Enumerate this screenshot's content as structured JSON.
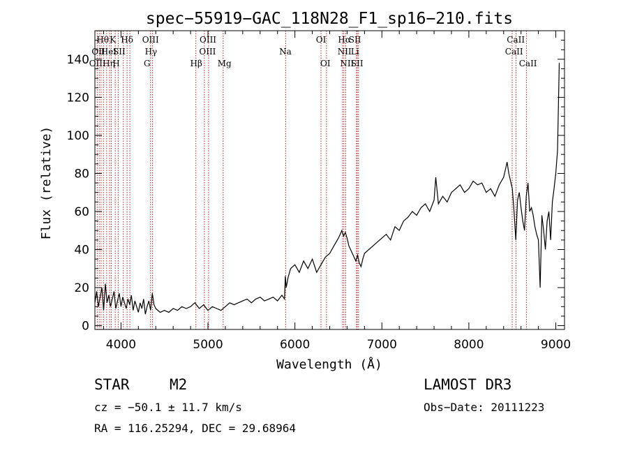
{
  "chart_data": {
    "type": "line",
    "title": "spec−55919−GAC_118N28_F1_sp16−210.fits",
    "xlabel": "Wavelength (Å)",
    "ylabel": "Flux (relative)",
    "xlim": [
      3700,
      9100
    ],
    "ylim": [
      -2,
      155
    ],
    "xticks": [
      4000,
      5000,
      6000,
      7000,
      8000,
      9000
    ],
    "yticks": [
      0,
      20,
      40,
      60,
      80,
      100,
      120,
      140
    ],
    "grid": false,
    "series": [
      {
        "name": "spectrum",
        "x": [
          3700,
          3720,
          3740,
          3760,
          3780,
          3800,
          3820,
          3840,
          3860,
          3880,
          3900,
          3920,
          3940,
          3960,
          3980,
          4000,
          4020,
          4040,
          4060,
          4080,
          4100,
          4120,
          4140,
          4160,
          4180,
          4200,
          4220,
          4240,
          4260,
          4280,
          4300,
          4320,
          4340,
          4360,
          4380,
          4400,
          4450,
          4500,
          4550,
          4600,
          4650,
          4700,
          4750,
          4800,
          4850,
          4900,
          4950,
          5000,
          5050,
          5100,
          5150,
          5200,
          5250,
          5300,
          5350,
          5400,
          5450,
          5500,
          5550,
          5600,
          5650,
          5700,
          5750,
          5800,
          5850,
          5880,
          5890,
          5900,
          5920,
          5950,
          6000,
          6050,
          6100,
          6150,
          6200,
          6250,
          6300,
          6350,
          6400,
          6450,
          6500,
          6520,
          6540,
          6560,
          6580,
          6600,
          6620,
          6640,
          6660,
          6680,
          6700,
          6720,
          6740,
          6760,
          6780,
          6800,
          6850,
          6900,
          6950,
          7000,
          7050,
          7100,
          7150,
          7200,
          7250,
          7300,
          7350,
          7400,
          7450,
          7500,
          7550,
          7600,
          7620,
          7650,
          7700,
          7750,
          7800,
          7850,
          7900,
          7950,
          8000,
          8050,
          8100,
          8150,
          8200,
          8250,
          8300,
          8350,
          8400,
          8420,
          8440,
          8460,
          8480,
          8500,
          8520,
          8540,
          8560,
          8580,
          8600,
          8620,
          8640,
          8660,
          8680,
          8700,
          8720,
          8740,
          8760,
          8780,
          8800,
          8820,
          8840,
          8860,
          8880,
          8900,
          8920,
          8940,
          8960,
          8980,
          9000,
          9020,
          9040
        ],
        "values": [
          12,
          18,
          10,
          15,
          20,
          8,
          22,
          12,
          16,
          10,
          14,
          18,
          9,
          13,
          17,
          10,
          15,
          12,
          9,
          14,
          11,
          16,
          8,
          13,
          10,
          7,
          12,
          9,
          14,
          6,
          10,
          13,
          8,
          17,
          11,
          9,
          7,
          8,
          7,
          9,
          8,
          10,
          9,
          10,
          12,
          9,
          11,
          8,
          10,
          9,
          8,
          10,
          12,
          11,
          12,
          13,
          14,
          12,
          14,
          15,
          13,
          14,
          15,
          13,
          16,
          14,
          26,
          20,
          25,
          30,
          32,
          28,
          34,
          30,
          35,
          28,
          32,
          36,
          38,
          42,
          46,
          48,
          50,
          47,
          49,
          46,
          42,
          40,
          38,
          36,
          34,
          37,
          33,
          31,
          35,
          38,
          40,
          42,
          44,
          46,
          48,
          45,
          52,
          50,
          55,
          57,
          60,
          58,
          62,
          64,
          60,
          66,
          78,
          64,
          68,
          65,
          70,
          72,
          74,
          70,
          72,
          76,
          74,
          75,
          70,
          72,
          68,
          74,
          78,
          82,
          86,
          80,
          76,
          72,
          60,
          45,
          66,
          70,
          62,
          55,
          50,
          68,
          75,
          60,
          62,
          58,
          52,
          48,
          45,
          20,
          58,
          50,
          40,
          55,
          60,
          45,
          65,
          72,
          80,
          92,
          138
        ]
      }
    ],
    "line_groups": [
      {
        "row": 1,
        "labels": [
          "Hθ",
          "K",
          "Hδ",
          "OIII",
          "OIII",
          "OI",
          "Hα",
          "SII",
          "CaII"
        ]
      },
      {
        "row": 2,
        "labels": [
          "OII",
          "HeI",
          "SII",
          "Hγ",
          "OIII",
          "Na",
          "NII",
          "Li",
          "CaII"
        ]
      },
      {
        "row": 3,
        "labels": [
          "OIII",
          "Hη",
          "H",
          "G",
          "Hβ",
          "Mg",
          "OI",
          "NII",
          "SII",
          "CaII"
        ]
      }
    ],
    "spectral_lines": [
      3727,
      3750,
      3771,
      3798,
      3835,
      3869,
      3889,
      3934,
      3968,
      4026,
      4070,
      4102,
      4340,
      4363,
      4861,
      4959,
      5007,
      5175,
      5893,
      6300,
      6363,
      6548,
      6563,
      6584,
      6708,
      6717,
      6731,
      8498,
      8542,
      8662
    ]
  },
  "footer": {
    "obj_type": "STAR",
    "subclass": "M2",
    "survey": "LAMOST DR3",
    "cz": "cz = −50.1 ± 11.7 km/s",
    "obs_date": "Obs−Date: 20111223",
    "coords": "RA = 116.25294, DEC =  29.68964"
  },
  "colors": {
    "spectrum": "#000000",
    "line_marker": "#b22222",
    "axis": "#000000"
  }
}
